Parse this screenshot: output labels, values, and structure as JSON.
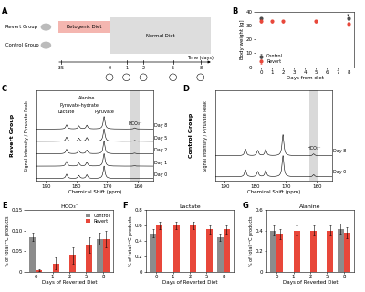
{
  "diagram": {
    "label": "A",
    "groups": [
      "Revert Group",
      "Control Group"
    ],
    "phases": [
      "Ketogenic Diet",
      "Normal Diet"
    ],
    "axis_label": "Time (days)",
    "ticks": [
      "-35",
      "0",
      "1",
      "2",
      "5",
      "8"
    ]
  },
  "chart_data": [
    {
      "label": "B",
      "type": "scatter",
      "x_label": "Days from diet",
      "y_label": "Body weight [g]",
      "xlim": [
        -0.5,
        8.5
      ],
      "xticks": [
        0,
        1,
        2,
        3,
        4,
        5,
        6,
        7,
        8
      ],
      "ylim": [
        0,
        40
      ],
      "yticks": [
        0,
        10,
        20,
        30,
        40
      ],
      "legend": "lower left",
      "series": [
        {
          "name": "Control",
          "color": "#4d4d4d",
          "marker": "o",
          "x": [
            0,
            8
          ],
          "values": [
            35,
            35
          ],
          "errors": [
            1.2,
            1.2
          ]
        },
        {
          "name": "Revert",
          "color": "#e8473a",
          "marker": "o",
          "x": [
            0,
            1,
            2,
            5,
            8
          ],
          "values": [
            33,
            33,
            33,
            33,
            31
          ],
          "errors": [
            1,
            1,
            1,
            1,
            1.5
          ]
        }
      ],
      "annotations": [
        {
          "text": "*",
          "x": 8,
          "y": 37
        }
      ]
    },
    {
      "label": "C",
      "type": "spectrum",
      "group": "Revert Group",
      "x_label": "Chemical Shift (ppm)",
      "y_label": "Signal Intensity / Pyruvate Peak",
      "xlim": [
        193,
        155
      ],
      "xticks": [
        190,
        180,
        170,
        160
      ],
      "tick_labels": "x",
      "shaded_range": [
        159.5,
        162.5
      ],
      "x": [
        183.2,
        179.2,
        176.6,
        171.0,
        161.0
      ],
      "peak_labels": [
        "Lactate",
        "Pyruvate-hydrate",
        "Alanine",
        "Pyruvate",
        "HCO₃⁻"
      ],
      "series": [
        {
          "name": "Day 0",
          "values": [
            0.35,
            0.25,
            0.3,
            1.0,
            0.005
          ]
        },
        {
          "name": "Day 1",
          "values": [
            0.38,
            0.25,
            0.3,
            1.0,
            0.03
          ]
        },
        {
          "name": "Day 2",
          "values": [
            0.36,
            0.25,
            0.3,
            1.0,
            0.05
          ]
        },
        {
          "name": "Day 5",
          "values": [
            0.34,
            0.25,
            0.3,
            1.0,
            0.08
          ]
        },
        {
          "name": "Day 8",
          "values": [
            0.33,
            0.25,
            0.3,
            1.0,
            0.09
          ]
        }
      ]
    },
    {
      "label": "D",
      "type": "spectrum",
      "group": "Control Group",
      "x_label": "Chemical Shift (ppm)",
      "y_label": "Signal Intensity / Pyruvate Peak",
      "xlim": [
        193,
        155
      ],
      "xticks": [
        190,
        180,
        170,
        160
      ],
      "tick_labels": "x",
      "shaded_range": [
        159.5,
        162.5
      ],
      "x": [
        183.2,
        179.2,
        176.6,
        171.0,
        161.0
      ],
      "peak_labels": [
        null,
        null,
        null,
        null,
        "HCO₃⁻"
      ],
      "series": [
        {
          "name": "Day 0",
          "values": [
            0.33,
            0.25,
            0.3,
            1.0,
            0.1
          ]
        },
        {
          "name": "Day 8",
          "values": [
            0.32,
            0.25,
            0.3,
            1.0,
            0.09
          ]
        }
      ]
    },
    {
      "label": "E",
      "type": "bar",
      "title": "HCO₃⁻",
      "x_label": "Days of Reverted Diet",
      "y_label": "% of total ¹³C products",
      "categories": [
        "0",
        "1",
        "2",
        "5",
        "8"
      ],
      "ylim": [
        0,
        0.15
      ],
      "yticks": [
        0,
        0.05,
        {
          "value": 0.1,
          "label": "0.10"
        },
        0.15
      ],
      "legend": "upper right",
      "series": [
        {
          "name": "Control",
          "color": "#8c8c8c",
          "values": [
            0.085,
            null,
            null,
            null,
            0.08
          ],
          "errors": [
            0.01,
            null,
            null,
            null,
            0.015
          ]
        },
        {
          "name": "Revert",
          "color": "#e8473a",
          "values": [
            0.003,
            0.02,
            0.04,
            0.065,
            0.08
          ],
          "errors": [
            0.002,
            0.015,
            0.02,
            0.02,
            0.02
          ]
        }
      ]
    },
    {
      "label": "F",
      "type": "bar",
      "title": "Lactate",
      "x_label": "Days of Reverted Diet",
      "y_label": "% of total ¹³C products",
      "categories": [
        "0",
        "1",
        "2",
        "5",
        "8"
      ],
      "ylim": [
        0,
        0.8
      ],
      "yticks": [
        0,
        0.2,
        0.4,
        0.6,
        0.8
      ],
      "series": [
        {
          "name": "Control",
          "color": "#8c8c8c",
          "values": [
            0.5,
            null,
            null,
            null,
            0.45
          ],
          "errors": [
            0.05,
            null,
            null,
            null,
            0.05
          ]
        },
        {
          "name": "Revert",
          "color": "#e8473a",
          "values": [
            0.6,
            0.6,
            0.6,
            0.55,
            0.55
          ],
          "errors": [
            0.05,
            0.05,
            0.05,
            0.05,
            0.05
          ]
        }
      ]
    },
    {
      "label": "G",
      "type": "bar",
      "title": "Alanine",
      "x_label": "Days of Reverted Diet",
      "y_label": "% of total ¹³C products",
      "categories": [
        "0",
        "1",
        "2",
        "5",
        "8"
      ],
      "ylim": [
        0,
        0.6
      ],
      "yticks": [
        0,
        0.2,
        0.4,
        0.6
      ],
      "series": [
        {
          "name": "Control",
          "color": "#8c8c8c",
          "values": [
            0.4,
            null,
            null,
            null,
            0.42
          ],
          "errors": [
            0.05,
            null,
            null,
            null,
            0.05
          ]
        },
        {
          "name": "Revert",
          "color": "#e8473a",
          "values": [
            0.37,
            0.4,
            0.4,
            0.4,
            0.38
          ],
          "errors": [
            0.05,
            0.05,
            0.05,
            0.05,
            0.05
          ]
        }
      ]
    }
  ]
}
